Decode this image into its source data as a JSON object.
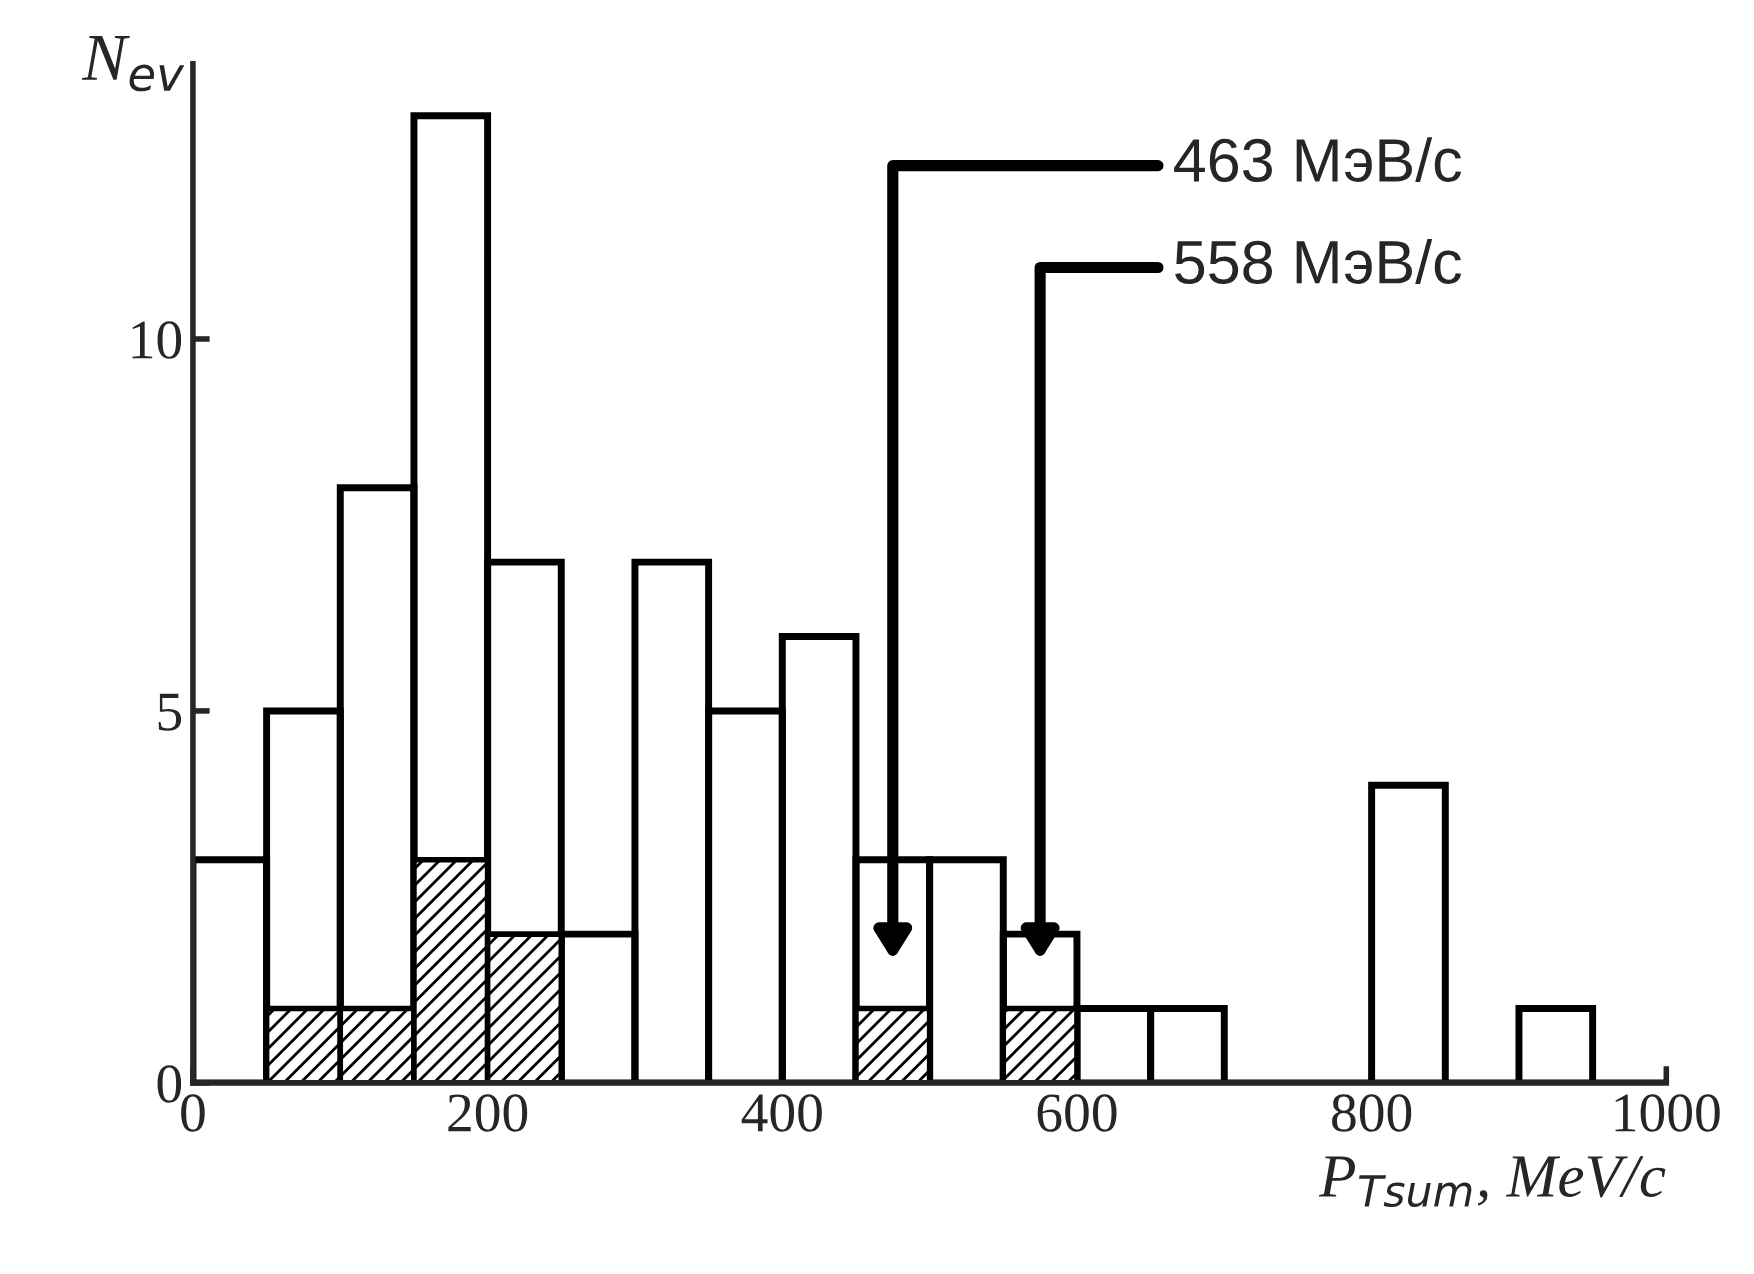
{
  "chart_data": {
    "type": "histogram",
    "xlabel": "P$_{Tsum}$, MeV/c",
    "ylabel": "N$_{ev}$",
    "bins": [
      0,
      50,
      100,
      150,
      200,
      250,
      300,
      350,
      400,
      450,
      500,
      550,
      600,
      650,
      700,
      750,
      800,
      850,
      900,
      950,
      1000
    ],
    "series": [
      {
        "color": "#000000",
        "values": [
          3,
          5,
          8,
          13,
          7,
          2,
          7,
          5,
          6,
          3,
          3,
          2,
          1,
          1,
          0,
          0,
          4,
          0,
          1,
          0
        ]
      },
      {
        "color": "#000000",
        "values": [
          0,
          1,
          1,
          3,
          2,
          0,
          0,
          0,
          0,
          1,
          0,
          1,
          0,
          0,
          0,
          0,
          0,
          0,
          0,
          0
        ]
      }
    ],
    "xlim": [
      0,
      1000
    ],
    "ylim": [
      0,
      13.7
    ],
    "xticks": [
      0,
      200,
      400,
      600,
      800,
      1000
    ],
    "yticks": [
      0,
      5,
      10
    ],
    "grid": false,
    "legend": false,
    "annotations": [
      "463 МэВ/c",
      "558 МэВ/c"
    ]
  }
}
